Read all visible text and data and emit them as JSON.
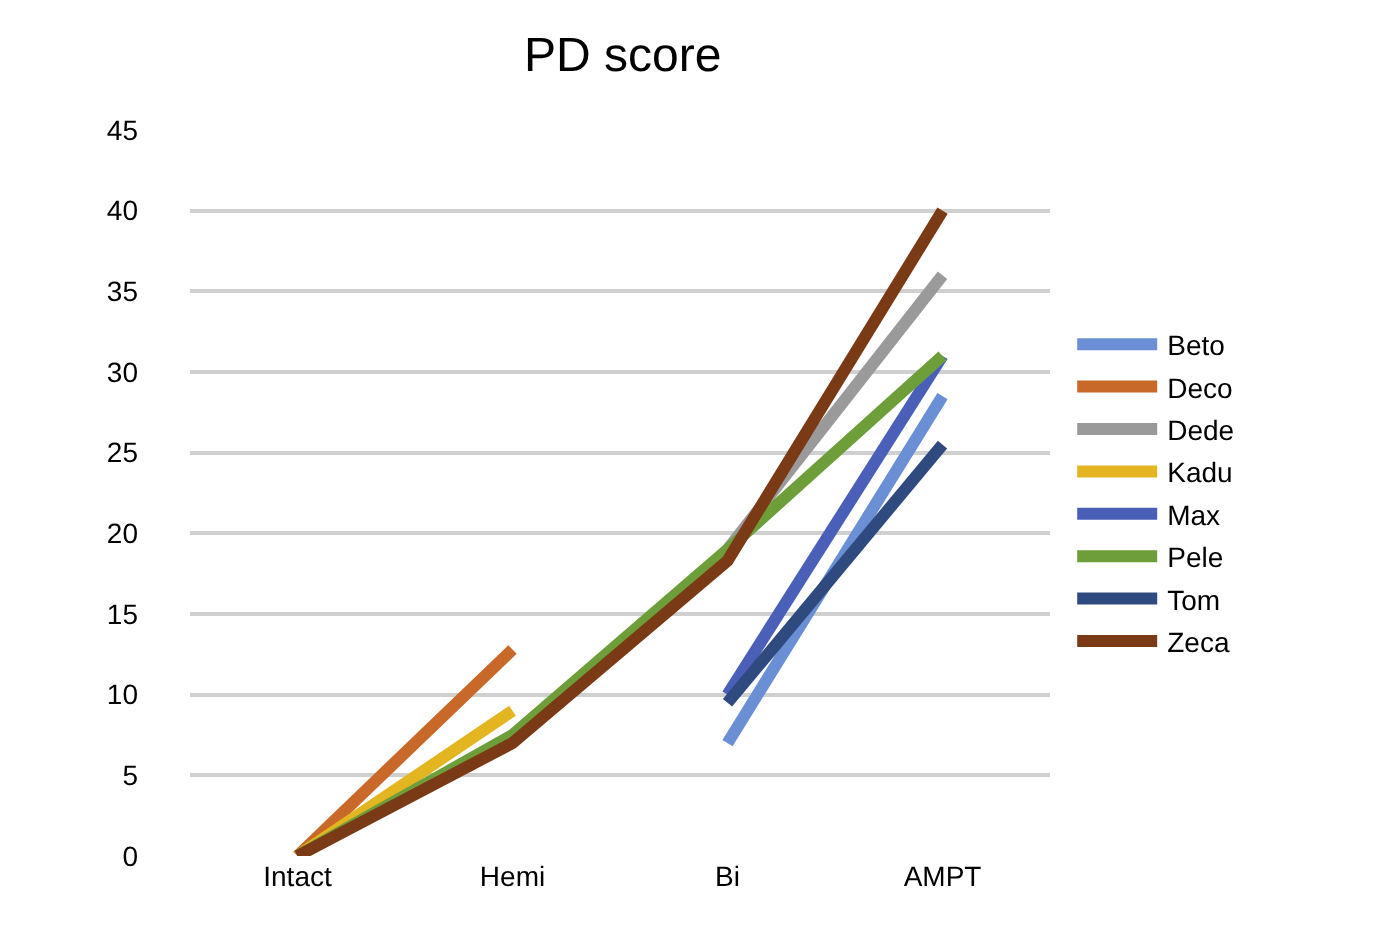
{
  "chart_data": {
    "type": "line",
    "title": "PD score",
    "categories": [
      "Intact",
      "Hemi",
      "Bi",
      "AMPT"
    ],
    "series": [
      {
        "name": "Beto",
        "color": "#6a8fd4",
        "values": [
          null,
          null,
          7,
          28.5
        ]
      },
      {
        "name": "Deco",
        "color": "#c8692a",
        "values": [
          0,
          12.8,
          null,
          null
        ]
      },
      {
        "name": "Dede",
        "color": "#9a9a9a",
        "values": [
          null,
          null,
          19,
          36
        ]
      },
      {
        "name": "Kadu",
        "color": "#e3b520",
        "values": [
          0,
          9,
          null,
          null
        ]
      },
      {
        "name": "Max",
        "color": "#4a5fb8",
        "values": [
          null,
          null,
          10,
          31
        ]
      },
      {
        "name": "Pele",
        "color": "#6e9e3a",
        "values": [
          0,
          7.5,
          19,
          31
        ]
      },
      {
        "name": "Tom",
        "color": "#2f4a7e",
        "values": [
          null,
          null,
          9.5,
          25.5
        ]
      },
      {
        "name": "Zeca",
        "color": "#7a3a15",
        "values": [
          0,
          7,
          18.3,
          40
        ]
      }
    ],
    "ylim": [
      0,
      45
    ],
    "yticks": [
      0,
      5,
      10,
      15,
      20,
      25,
      30,
      35,
      40,
      45
    ],
    "grid": "y",
    "legend": "right",
    "marker": "none",
    "line_style": "solid"
  }
}
